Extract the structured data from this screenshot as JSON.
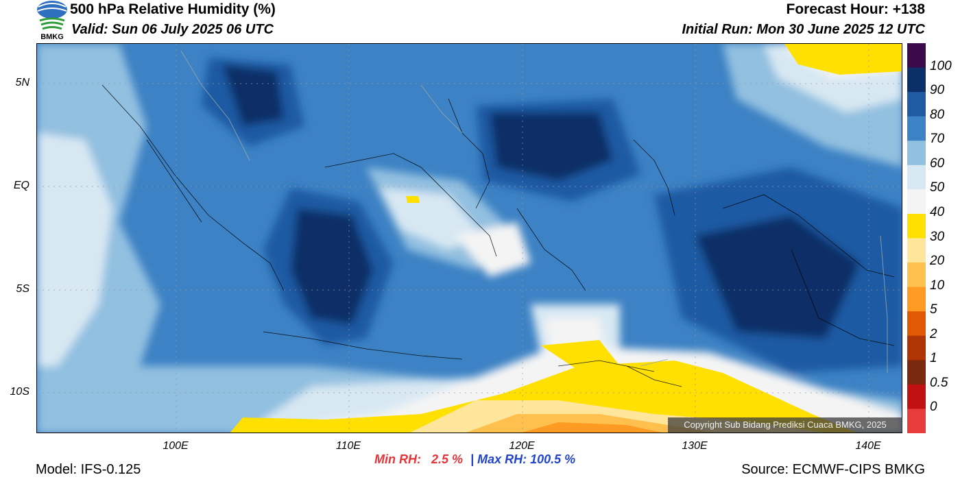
{
  "header": {
    "title": "500 hPa Relative Humidity (%)",
    "valid": "Valid: Sun 06 July 2025 06 UTC",
    "forecast_hour": "Forecast Hour: +138",
    "initial_run": "Initial Run: Mon 30 June 2025 12 UTC"
  },
  "logo": {
    "text": "BMKG",
    "icon": "bmkg-logo"
  },
  "axes": {
    "lat_labels": [
      "5N",
      "EQ",
      "5S",
      "10S"
    ],
    "lon_labels": [
      "100E",
      "110E",
      "120E",
      "130E",
      "140E"
    ]
  },
  "colorbar": {
    "labels": [
      "100",
      "90",
      "80",
      "70",
      "60",
      "50",
      "40",
      "30",
      "20",
      "10",
      "5",
      "2",
      "1",
      "0.5",
      "0"
    ],
    "colors": [
      "#3a0a4a",
      "#0b2f66",
      "#1f5aa3",
      "#3d82c4",
      "#92c0e0",
      "#d8e8f3",
      "#f4f4f4",
      "#ffe000",
      "#ffe69a",
      "#ffc04e",
      "#ff9a22",
      "#e05a06",
      "#b03505",
      "#7a2810",
      "#c01010",
      "#e83c3a"
    ]
  },
  "stats": {
    "min_label": "Min RH:",
    "min_value": "2.5 %",
    "separator": "|",
    "max_label": "Max RH:",
    "max_value": "100.5 %"
  },
  "footer": {
    "model": "Model: IFS-0.125",
    "source": "Source: ECMWF-CIPS BMKG",
    "copyright": "Copyright Sub Bidang Prediksi Cuaca BMKG, 2025"
  }
}
